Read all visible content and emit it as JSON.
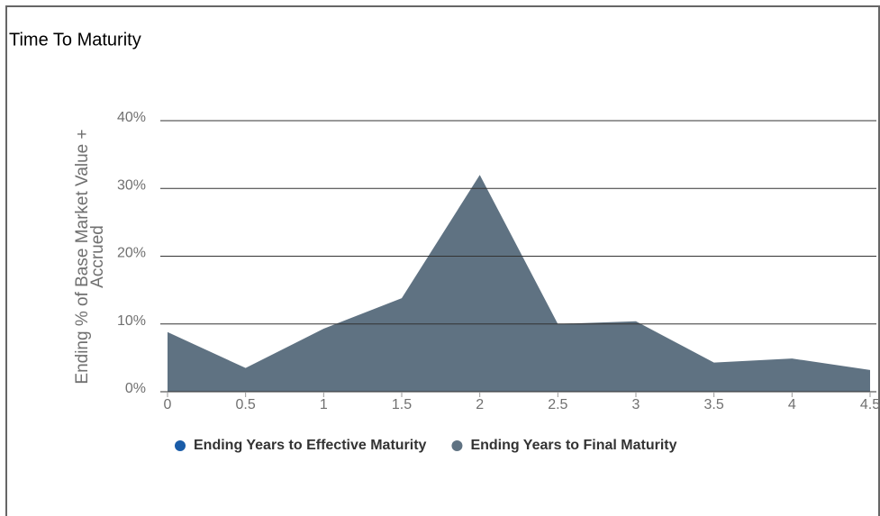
{
  "chart_data": {
    "type": "area",
    "title": "Time To Maturity",
    "ylabel": [
      "Ending % of Base Market Value +",
      "Accrued"
    ],
    "x": [
      0,
      0.5,
      1,
      1.5,
      2,
      2.5,
      3,
      3.5,
      4,
      4.5
    ],
    "series": [
      {
        "name": "Ending Years to Effective Maturity",
        "color": "#1a5ca8",
        "values": [
          null,
          null,
          null,
          null,
          null,
          null,
          null,
          null,
          null,
          null
        ]
      },
      {
        "name": "Ending Years to Final Maturity",
        "color": "#5f7282",
        "values": [
          8.8,
          3.5,
          9.3,
          13.8,
          32,
          10,
          10.4,
          4.3,
          4.9,
          3.2
        ]
      }
    ],
    "xlim": [
      0,
      4.5
    ],
    "xticks": [
      0,
      0.5,
      1,
      1.5,
      2,
      2.5,
      3,
      3.5,
      4,
      4.5
    ],
    "ylim": [
      0,
      40
    ],
    "yticks": [
      {
        "value": 0,
        "label": "0%"
      },
      {
        "value": 10,
        "label": "10%"
      },
      {
        "value": 20,
        "label": "20%"
      },
      {
        "value": 30,
        "label": "30%"
      },
      {
        "value": 40,
        "label": "40%"
      }
    ],
    "grid": true,
    "legend": "bottom"
  }
}
